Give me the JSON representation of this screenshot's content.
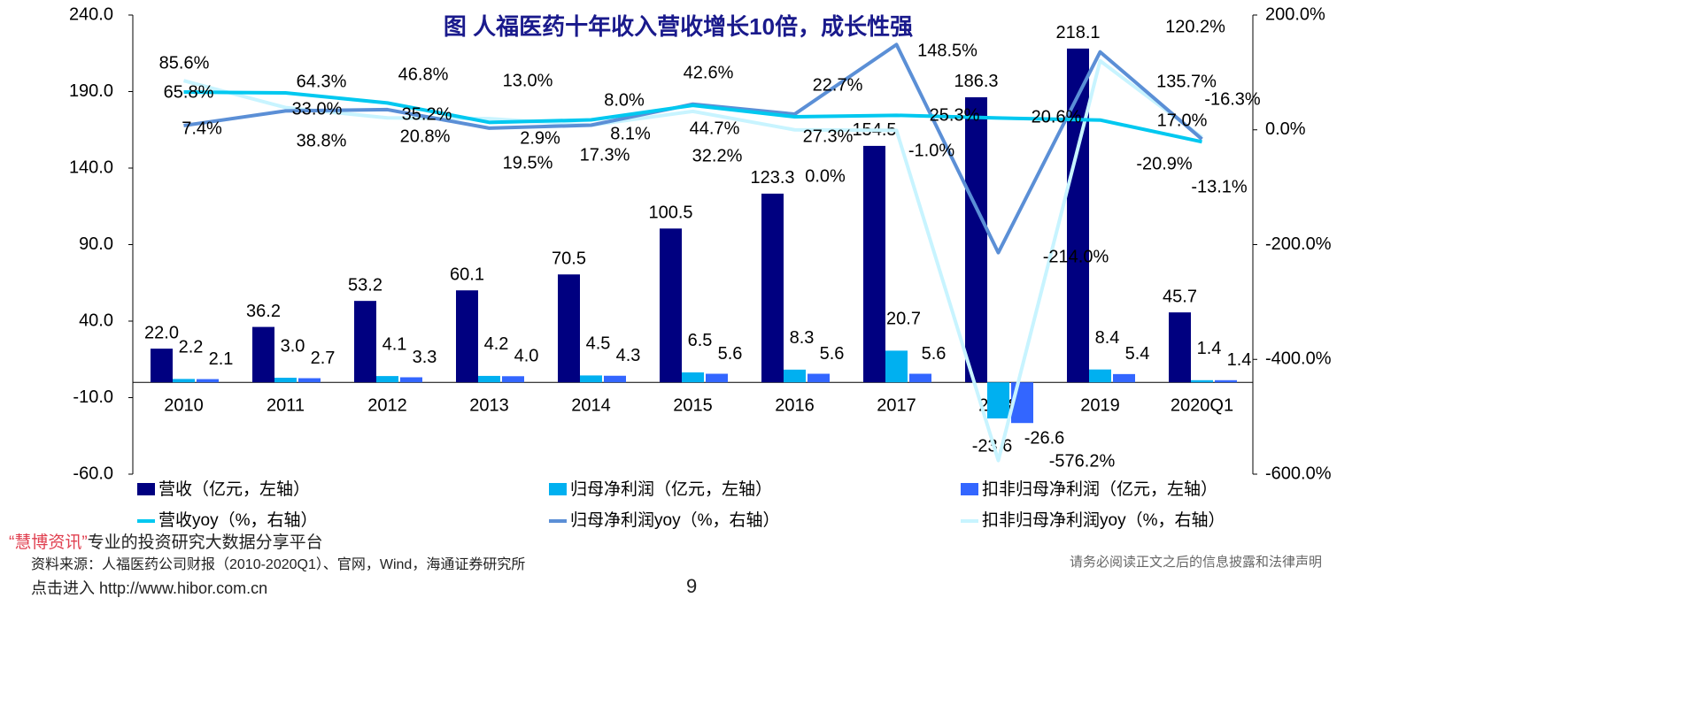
{
  "chart_data": {
    "type": "bar+line",
    "title": "图 人福医药十年收入营收增长10倍，成长性强",
    "categories": [
      "2010",
      "2011",
      "2012",
      "2013",
      "2014",
      "2015",
      "2016",
      "2017",
      "2018",
      "2019",
      "2020Q1"
    ],
    "left_axis": {
      "ylim": [
        -60,
        240
      ],
      "ticks": [
        "240.0",
        "190.0",
        "140.0",
        "90.0",
        "40.0",
        "-10.0",
        "-60.0"
      ],
      "tick_values": [
        240,
        190,
        140,
        90,
        40,
        -10,
        -60
      ]
    },
    "right_axis": {
      "ylim": [
        -600,
        200
      ],
      "ticks": [
        "200.0%",
        "0.0%",
        "-200.0%",
        "-400.0%",
        "-600.0%"
      ],
      "tick_values": [
        200,
        0,
        -200,
        -400,
        -600
      ]
    },
    "bar_series": [
      {
        "name": "营收（亿元，左轴）",
        "color": "#000080",
        "values": [
          22.0,
          36.2,
          53.2,
          60.1,
          70.5,
          100.5,
          123.3,
          154.5,
          186.3,
          218.1,
          45.7
        ],
        "labels": [
          "22.0",
          "36.2",
          "53.2",
          "60.1",
          "70.5",
          "100.5",
          "123.3",
          "154.5",
          "186.3",
          "218.1",
          "45.7"
        ]
      },
      {
        "name": "归母净利润（亿元，左轴）",
        "color": "#00b0f0",
        "values": [
          2.2,
          3.0,
          4.1,
          4.2,
          4.5,
          6.5,
          8.3,
          20.7,
          -23.6,
          8.4,
          1.4
        ],
        "labels": [
          "2.2",
          "3.0",
          "4.1",
          "4.2",
          "4.5",
          "6.5",
          "8.3",
          "20.7",
          "-23.6",
          "8.4",
          "1.4"
        ]
      },
      {
        "name": "扣非归母净利润（亿元，左轴）",
        "color": "#3366ff",
        "values": [
          2.1,
          2.7,
          3.3,
          4.0,
          4.3,
          5.6,
          5.6,
          5.6,
          -26.6,
          5.4,
          1.4
        ],
        "labels": [
          "2.1",
          "2.7",
          "3.3",
          "4.0",
          "4.3",
          "5.6",
          "5.6",
          "5.6",
          "-26.6",
          "5.4",
          "1.4"
        ]
      }
    ],
    "line_series": [
      {
        "name": "营收yoy（%，右轴）",
        "color": "#00c8f0",
        "values": [
          65.8,
          64.3,
          46.8,
          13.0,
          17.3,
          42.6,
          22.7,
          25.3,
          20.6,
          17.0,
          -20.9
        ],
        "labels": [
          "65.8%",
          "64.3%",
          "46.8%",
          "13.0%",
          "17.3%",
          "42.6%",
          "22.7%",
          "25.3%",
          "20.6%",
          "17.0%",
          "-20.9%"
        ]
      },
      {
        "name": "归母净利润yoy（%，右轴）",
        "color": "#5b8fd6",
        "values": [
          7.4,
          33.0,
          35.2,
          2.9,
          8.1,
          44.7,
          27.3,
          148.5,
          -214.0,
          135.7,
          -16.3
        ],
        "labels": [
          "7.4%",
          "33.0%",
          "35.2%",
          "2.9%",
          "8.1%",
          "44.7%",
          "27.3%",
          "148.5%",
          "-214.0%",
          "135.7%",
          "-16.3%"
        ]
      },
      {
        "name": "扣非归母净利润yoy（%，右轴）",
        "color": "#c8f4ff",
        "values": [
          85.6,
          38.8,
          20.8,
          19.5,
          8.0,
          32.2,
          0.0,
          -1.0,
          -576.2,
          120.2,
          -13.1
        ],
        "labels": [
          "85.6%",
          "38.8%",
          "20.8%",
          "19.5%",
          "8.0%",
          "32.2%",
          "0.0%",
          "-1.0%",
          "-576.2%",
          "120.2%",
          "-13.1%"
        ]
      }
    ],
    "legend": "bottom"
  },
  "footer": {
    "watermark_quote": "“慧博资讯”",
    "watermark_text": "专业的投资研究大数据分享平台",
    "source": "资料来源：人福医药公司财报（2010-2020Q1）、官网，Wind，海通证券研究所",
    "link": "点击进入 http://www.hibor.com.cn",
    "page_number": "9",
    "disclaimer": "请务必阅读正文之后的信息披露和法律声明"
  }
}
